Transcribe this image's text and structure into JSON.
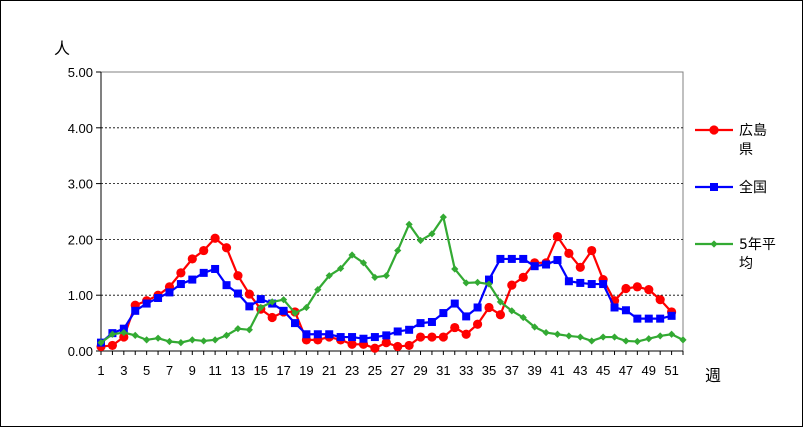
{
  "chart_data": {
    "type": "line",
    "y_unit_label": "人",
    "x_unit_label": "週",
    "ylim": [
      0,
      5
    ],
    "yticks": [
      "0.00",
      "1.00",
      "2.00",
      "3.00",
      "4.00",
      "5.00"
    ],
    "x_range": [
      1,
      52
    ],
    "xticks": [
      "1",
      "3",
      "5",
      "7",
      "9",
      "11",
      "13",
      "15",
      "17",
      "19",
      "21",
      "23",
      "25",
      "27",
      "29",
      "31",
      "33",
      "35",
      "37",
      "39",
      "41",
      "43",
      "45",
      "47",
      "49",
      "51"
    ],
    "grid": "horizontal dashed",
    "legend_position": "right",
    "x": [
      1,
      2,
      3,
      4,
      5,
      6,
      7,
      8,
      9,
      10,
      11,
      12,
      13,
      14,
      15,
      16,
      17,
      18,
      19,
      20,
      21,
      22,
      23,
      24,
      25,
      26,
      27,
      28,
      29,
      30,
      31,
      32,
      33,
      34,
      35,
      36,
      37,
      38,
      39,
      40,
      41,
      42,
      43,
      44,
      45,
      46,
      47,
      48,
      49,
      50,
      51,
      52
    ],
    "series": [
      {
        "name_lines": [
          "広島",
          "県"
        ],
        "color": "#ff0000",
        "marker": "circle",
        "values": [
          0.08,
          0.1,
          0.25,
          0.82,
          0.9,
          1.0,
          1.15,
          1.4,
          1.65,
          1.8,
          2.02,
          1.85,
          1.35,
          1.02,
          0.75,
          0.6,
          0.7,
          0.7,
          0.2,
          0.2,
          0.25,
          0.2,
          0.12,
          0.12,
          0.05,
          0.15,
          0.08,
          0.1,
          0.25,
          0.25,
          0.25,
          0.42,
          0.3,
          0.48,
          0.78,
          0.65,
          1.18,
          1.32,
          1.58,
          1.58,
          2.05,
          1.75,
          1.5,
          1.8,
          1.28,
          0.9,
          1.12,
          1.15,
          1.1,
          0.92,
          0.7,
          null
        ]
      },
      {
        "name_lines": [
          "全国"
        ],
        "color": "#0000ff",
        "marker": "square",
        "values": [
          0.15,
          0.32,
          0.4,
          0.72,
          0.85,
          0.95,
          1.05,
          1.2,
          1.28,
          1.4,
          1.47,
          1.18,
          1.03,
          0.8,
          0.93,
          0.85,
          0.72,
          0.5,
          0.3,
          0.3,
          0.3,
          0.25,
          0.25,
          0.22,
          0.25,
          0.28,
          0.35,
          0.38,
          0.5,
          0.52,
          0.68,
          0.85,
          0.62,
          0.78,
          1.28,
          1.65,
          1.65,
          1.65,
          1.52,
          1.55,
          1.63,
          1.25,
          1.22,
          1.2,
          1.2,
          0.78,
          0.73,
          0.58,
          0.58,
          0.58,
          0.63,
          null
        ]
      },
      {
        "name_lines": [
          "5年平",
          "均"
        ],
        "color": "#33aa33",
        "marker": "diamond",
        "values": [
          0.15,
          0.3,
          0.33,
          0.28,
          0.2,
          0.23,
          0.17,
          0.15,
          0.2,
          0.18,
          0.2,
          0.28,
          0.4,
          0.38,
          0.78,
          0.88,
          0.92,
          0.68,
          0.78,
          1.1,
          1.35,
          1.48,
          1.72,
          1.58,
          1.32,
          1.35,
          1.8,
          2.27,
          1.98,
          2.1,
          2.4,
          1.47,
          1.22,
          1.23,
          1.2,
          0.88,
          0.72,
          0.6,
          0.43,
          0.33,
          0.3,
          0.27,
          0.25,
          0.18,
          0.25,
          0.25,
          0.18,
          0.17,
          0.22,
          0.27,
          0.3,
          0.2
        ]
      }
    ]
  }
}
